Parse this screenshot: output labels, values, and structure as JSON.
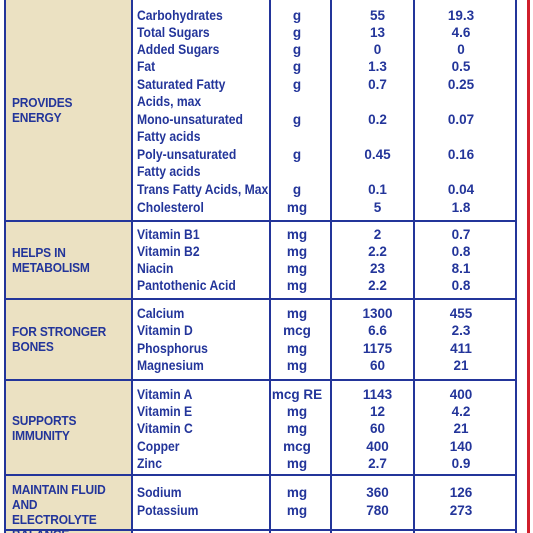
{
  "categories": [
    {
      "label": "PROVIDES ENERGY"
    },
    {
      "label": "HELPS IN METABOLISM"
    },
    {
      "label": "FOR STRONGER BONES"
    },
    {
      "label": "SUPPORTS IMMUNITY"
    },
    {
      "label": "MAINTAIN FLUID AND ELECTROLYTE BALANCE"
    }
  ],
  "rows": [
    {
      "name": "Carbohydrates",
      "unit": "g",
      "a": "55",
      "b": "19.3"
    },
    {
      "name": "Total Sugars",
      "unit": "g",
      "a": "13",
      "b": "4.6"
    },
    {
      "name": "Added Sugars",
      "unit": "g",
      "a": "0",
      "b": "0"
    },
    {
      "name": "Fat",
      "unit": "g",
      "a": "1.3",
      "b": "0.5"
    },
    {
      "name": "Saturated Fatty",
      "unit": "g",
      "a": "0.7",
      "b": "0.25"
    },
    {
      "name": "Acids, max",
      "unit": "",
      "a": "",
      "b": ""
    },
    {
      "name": "Mono-unsaturated",
      "unit": "g",
      "a": "0.2",
      "b": "0.07"
    },
    {
      "name": "Fatty acids",
      "unit": "",
      "a": "",
      "b": ""
    },
    {
      "name": "Poly-unsaturated",
      "unit": "g",
      "a": "0.45",
      "b": "0.16"
    },
    {
      "name": "Fatty acids",
      "unit": "",
      "a": "",
      "b": ""
    },
    {
      "name": "Trans Fatty Acids, Max",
      "unit": "g",
      "a": "0.1",
      "b": "0.04"
    },
    {
      "name": "Cholesterol",
      "unit": "mg",
      "a": "5",
      "b": "1.8"
    },
    {
      "name": "Vitamin B1",
      "unit": "mg",
      "a": "2",
      "b": "0.7"
    },
    {
      "name": "Vitamin B2",
      "unit": "mg",
      "a": "2.2",
      "b": "0.8"
    },
    {
      "name": "Niacin",
      "unit": "mg",
      "a": "23",
      "b": "8.1"
    },
    {
      "name": "Pantothenic Acid",
      "unit": "mg",
      "a": "2.2",
      "b": "0.8"
    },
    {
      "name": "Calcium",
      "unit": "mg",
      "a": "1300",
      "b": "455"
    },
    {
      "name": "Vitamin D",
      "unit": "mcg",
      "a": "6.6",
      "b": "2.3"
    },
    {
      "name": "Phosphorus",
      "unit": "mg",
      "a": "1175",
      "b": "411"
    },
    {
      "name": "Magnesium",
      "unit": "mg",
      "a": "60",
      "b": "21"
    },
    {
      "name": "Vitamin A",
      "unit": "mcg RE",
      "a": "1143",
      "b": "400"
    },
    {
      "name": "Vitamin E",
      "unit": "mg",
      "a": "12",
      "b": "4.2"
    },
    {
      "name": "Vitamin C",
      "unit": "mg",
      "a": "60",
      "b": "21"
    },
    {
      "name": "Copper",
      "unit": "mcg",
      "a": "400",
      "b": "140"
    },
    {
      "name": "Zinc",
      "unit": "mg",
      "a": "2.7",
      "b": "0.9"
    },
    {
      "name": "Sodium",
      "unit": "mg",
      "a": "360",
      "b": "126"
    },
    {
      "name": "Potassium",
      "unit": "mg",
      "a": "780",
      "b": "273"
    }
  ]
}
